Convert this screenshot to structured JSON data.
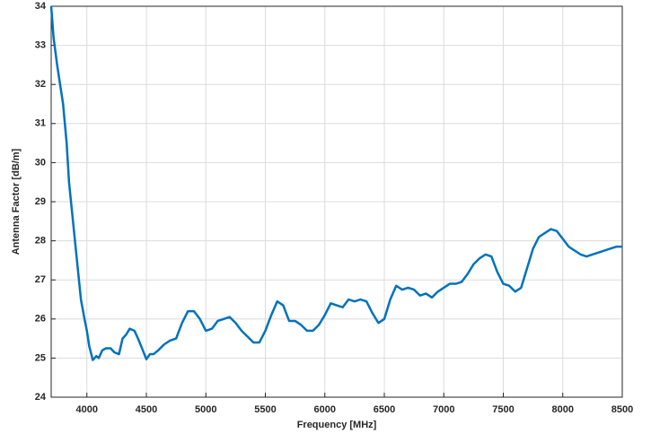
{
  "chart_data": {
    "type": "line",
    "xlabel": "Frequency [MHz]",
    "ylabel": "Antenna Factor [dB/m]",
    "x": [
      3700,
      3720,
      3750,
      3800,
      3830,
      3850,
      3900,
      3950,
      3980,
      4000,
      4020,
      4050,
      4080,
      4100,
      4130,
      4160,
      4200,
      4230,
      4270,
      4300,
      4330,
      4360,
      4400,
      4430,
      4470,
      4500,
      4530,
      4560,
      4600,
      4650,
      4700,
      4750,
      4800,
      4850,
      4900,
      4950,
      5000,
      5050,
      5100,
      5150,
      5200,
      5250,
      5300,
      5350,
      5400,
      5450,
      5500,
      5550,
      5600,
      5650,
      5700,
      5750,
      5800,
      5850,
      5900,
      5950,
      6000,
      6050,
      6100,
      6150,
      6200,
      6250,
      6300,
      6350,
      6400,
      6450,
      6500,
      6550,
      6600,
      6650,
      6700,
      6750,
      6800,
      6850,
      6900,
      6950,
      7000,
      7050,
      7100,
      7150,
      7200,
      7250,
      7300,
      7350,
      7400,
      7450,
      7500,
      7550,
      7600,
      7650,
      7700,
      7750,
      7800,
      7850,
      7900,
      7950,
      8000,
      8050,
      8100,
      8150,
      8200,
      8250,
      8300,
      8350,
      8400,
      8450,
      8500
    ],
    "series": [
      {
        "name": "Antenna Factor",
        "color": "#0072bd",
        "values": [
          34,
          33.2,
          32.5,
          31.5,
          30.5,
          29.5,
          28.0,
          26.5,
          26.0,
          25.7,
          25.3,
          24.95,
          25.05,
          25.0,
          25.2,
          25.25,
          25.25,
          25.15,
          25.1,
          25.5,
          25.6,
          25.75,
          25.7,
          25.5,
          25.2,
          24.97,
          25.1,
          25.1,
          25.2,
          25.35,
          25.45,
          25.5,
          25.9,
          26.2,
          26.2,
          26.0,
          25.7,
          25.75,
          25.95,
          26.0,
          26.05,
          25.9,
          25.7,
          25.55,
          25.4,
          25.4,
          25.7,
          26.1,
          26.45,
          26.35,
          25.95,
          25.95,
          25.85,
          25.7,
          25.7,
          25.85,
          26.1,
          26.4,
          26.35,
          26.3,
          26.5,
          26.45,
          26.5,
          26.45,
          26.15,
          25.9,
          26.0,
          26.5,
          26.85,
          26.75,
          26.8,
          26.75,
          26.6,
          26.65,
          26.55,
          26.7,
          26.8,
          26.9,
          26.9,
          26.95,
          27.15,
          27.4,
          27.55,
          27.65,
          27.6,
          27.2,
          26.9,
          26.85,
          26.7,
          26.8,
          27.3,
          27.8,
          28.1,
          28.2,
          28.3,
          28.25,
          28.05,
          27.85,
          27.75,
          27.65,
          27.6,
          27.65,
          27.7,
          27.75,
          27.8,
          27.85,
          27.85
        ]
      }
    ],
    "xlim": [
      3700,
      8500
    ],
    "xticks": [
      4000,
      4500,
      5000,
      5500,
      6000,
      6500,
      7000,
      7500,
      8000,
      8500
    ],
    "ylim": [
      24,
      34
    ],
    "yticks": [
      24,
      25,
      26,
      27,
      28,
      29,
      30,
      31,
      32,
      33,
      34
    ],
    "grid": true
  }
}
